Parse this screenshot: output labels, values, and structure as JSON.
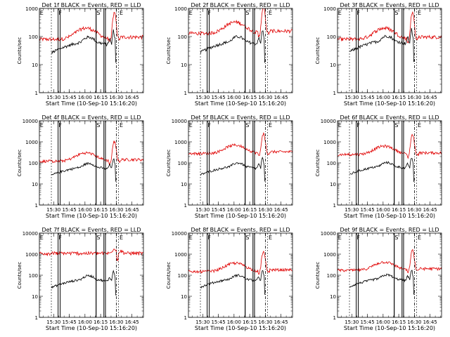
{
  "colors": {
    "events": "#000000",
    "lld": "#e00000",
    "axis": "#000000"
  },
  "chart_data": [
    {
      "type": "line",
      "title": "Det 1f BLACK = Events, RED = LLD",
      "xlabel": "Start Time (10-Sep-10 15:16:20)",
      "ylabel": "Counts/sec",
      "yscale": "log",
      "ylim": [
        1,
        1000
      ],
      "yticks": [
        "1",
        "10",
        "100",
        "1000"
      ],
      "xticks": [
        "15:30",
        "15:45",
        "16:00",
        "16:15",
        "16:30",
        "16:45"
      ],
      "xlim": [
        "15:16:20",
        "16:56:00"
      ],
      "markers": [
        "E",
        "F",
        "S",
        "E"
      ],
      "series": [
        {
          "name": "Events",
          "color": "black"
        },
        {
          "name": "LLD",
          "color": "red"
        }
      ]
    },
    {
      "type": "line",
      "title": "Det 2f BLACK = Events, RED = LLD",
      "xlabel": "Start Time (10-Sep-10 15:16:20)",
      "ylabel": "Counts/sec",
      "yscale": "log",
      "ylim": [
        1,
        1000
      ],
      "yticks": [
        "1",
        "10",
        "100",
        "1000"
      ],
      "xticks": [
        "15:30",
        "15:45",
        "16:00",
        "16:15",
        "16:30",
        "16:45"
      ],
      "xlim": [
        "15:16:20",
        "16:56:00"
      ],
      "markers": [
        "E",
        "F",
        "S",
        "E"
      ],
      "series": [
        {
          "name": "Events",
          "color": "black"
        },
        {
          "name": "LLD",
          "color": "red"
        }
      ]
    },
    {
      "type": "line",
      "title": "Det 3f BLACK = Events, RED = LLD",
      "xlabel": "Start Time (10-Sep-10 15:16:20)",
      "ylabel": "Counts/sec",
      "yscale": "log",
      "ylim": [
        1,
        1000
      ],
      "yticks": [
        "1",
        "10",
        "100",
        "1000"
      ],
      "xticks": [
        "15:30",
        "15:45",
        "16:00",
        "16:15",
        "16:30",
        "16:45"
      ],
      "xlim": [
        "15:16:20",
        "16:56:00"
      ],
      "markers": [
        "E",
        "F",
        "S",
        "E"
      ],
      "series": [
        {
          "name": "Events",
          "color": "black"
        },
        {
          "name": "LLD",
          "color": "red"
        }
      ]
    },
    {
      "type": "line",
      "title": "Det 4f BLACK = Events, RED = LLD",
      "xlabel": "Start Time (10-Sep-10 15:16:20)",
      "ylabel": "Counts/sec",
      "yscale": "log",
      "ylim": [
        1,
        10000
      ],
      "yticks": [
        "1",
        "10",
        "100",
        "1000",
        "10000"
      ],
      "xticks": [
        "15:30",
        "15:45",
        "16:00",
        "16:15",
        "16:30",
        "16:45"
      ],
      "xlim": [
        "15:16:20",
        "16:56:00"
      ],
      "markers": [
        "E",
        "F",
        "S",
        "E"
      ],
      "series": [
        {
          "name": "Events",
          "color": "black"
        },
        {
          "name": "LLD",
          "color": "red"
        }
      ]
    },
    {
      "type": "line",
      "title": "Det 5f BLACK = Events, RED = LLD",
      "xlabel": "Start Time (10-Sep-10 15:16:20)",
      "ylabel": "Counts/sec",
      "yscale": "log",
      "ylim": [
        1,
        10000
      ],
      "yticks": [
        "1",
        "10",
        "100",
        "1000",
        "10000"
      ],
      "xticks": [
        "15:30",
        "15:45",
        "16:00",
        "16:15",
        "16:30",
        "16:45"
      ],
      "xlim": [
        "15:16:20",
        "16:56:00"
      ],
      "markers": [
        "E",
        "F",
        "S",
        "E"
      ],
      "series": [
        {
          "name": "Events",
          "color": "black"
        },
        {
          "name": "LLD",
          "color": "red"
        }
      ]
    },
    {
      "type": "line",
      "title": "Det 6f BLACK = Events, RED = LLD",
      "xlabel": "Start Time (10-Sep-10 15:16:20)",
      "ylabel": "Counts/sec",
      "yscale": "log",
      "ylim": [
        1,
        10000
      ],
      "yticks": [
        "1",
        "10",
        "100",
        "1000",
        "10000"
      ],
      "xticks": [
        "15:30",
        "15:45",
        "16:00",
        "16:15",
        "16:30",
        "16:45"
      ],
      "xlim": [
        "15:16:20",
        "16:56:00"
      ],
      "markers": [
        "E",
        "F",
        "S",
        "E"
      ],
      "series": [
        {
          "name": "Events",
          "color": "black"
        },
        {
          "name": "LLD",
          "color": "red"
        }
      ]
    },
    {
      "type": "line",
      "title": "Det 7f BLACK = Events, RED = LLD",
      "xlabel": "Start Time (10-Sep-10 15:16:20)",
      "ylabel": "Counts/sec",
      "yscale": "log",
      "ylim": [
        1,
        10000
      ],
      "yticks": [
        "1",
        "10",
        "100",
        "1000",
        "10000"
      ],
      "xticks": [
        "15:30",
        "15:45",
        "16:00",
        "16:15",
        "16:30",
        "16:45"
      ],
      "xlim": [
        "15:16:20",
        "16:56:00"
      ],
      "markers": [
        "E",
        "F",
        "S",
        "E"
      ],
      "series": [
        {
          "name": "Events",
          "color": "black"
        },
        {
          "name": "LLD",
          "color": "red"
        }
      ]
    },
    {
      "type": "line",
      "title": "Det 8f BLACK = Events, RED = LLD",
      "xlabel": "Start Time (10-Sep-10 15:16:20)",
      "ylabel": "Counts/sec",
      "yscale": "log",
      "ylim": [
        1,
        10000
      ],
      "yticks": [
        "1",
        "10",
        "100",
        "1000",
        "10000"
      ],
      "xticks": [
        "15:30",
        "15:45",
        "16:00",
        "16:15",
        "16:30",
        "16:45"
      ],
      "xlim": [
        "15:16:20",
        "16:56:00"
      ],
      "markers": [
        "E",
        "F",
        "S",
        "E"
      ],
      "series": [
        {
          "name": "Events",
          "color": "black"
        },
        {
          "name": "LLD",
          "color": "red"
        }
      ]
    },
    {
      "type": "line",
      "title": "Det 9f BLACK = Events, RED = LLD",
      "xlabel": "Start Time (10-Sep-10 15:16:20)",
      "ylabel": "Counts/sec",
      "yscale": "log",
      "ylim": [
        1,
        10000
      ],
      "yticks": [
        "1",
        "10",
        "100",
        "1000",
        "10000"
      ],
      "xticks": [
        "15:30",
        "15:45",
        "16:00",
        "16:15",
        "16:30",
        "16:45"
      ],
      "xlim": [
        "15:16:20",
        "16:56:00"
      ],
      "markers": [
        "E",
        "F",
        "S",
        "E"
      ],
      "series": [
        {
          "name": "Events",
          "color": "black"
        },
        {
          "name": "LLD",
          "color": "red"
        }
      ]
    }
  ]
}
